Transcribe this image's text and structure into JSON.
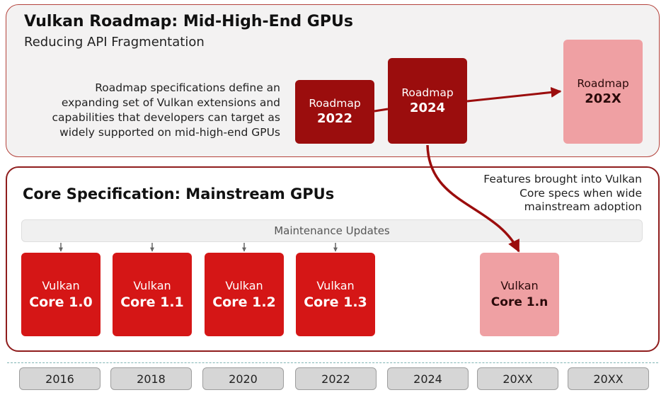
{
  "roadmap_section": {
    "title": "Vulkan Roadmap: Mid-High-End GPUs",
    "subtitle": "Reducing API Fragmentation",
    "description_lines": [
      "Roadmap specifications define an",
      "expanding set of Vulkan extensions and",
      "capabilities that developers can target as",
      "widely supported on mid-high-end GPUs"
    ],
    "milestones": [
      {
        "line1": "Roadmap",
        "line2": "2022"
      },
      {
        "line1": "Roadmap",
        "line2": "2024"
      },
      {
        "line1": "Roadmap",
        "line2": "202X"
      }
    ]
  },
  "core_section": {
    "title": "Core Specification: Mainstream  GPUs",
    "note_lines": [
      "Features brought into Vulkan",
      "Core specs when wide",
      "mainstream adoption"
    ],
    "maintenance_label": "Maintenance Updates",
    "versions": [
      {
        "line1": "Vulkan",
        "line2": "Core 1.0"
      },
      {
        "line1": "Vulkan",
        "line2": "Core 1.1"
      },
      {
        "line1": "Vulkan",
        "line2": "Core 1.2"
      },
      {
        "line1": "Vulkan",
        "line2": "Core 1.3"
      },
      {
        "line1": "Vulkan",
        "line2": "Core 1.n"
      }
    ]
  },
  "timeline": [
    "2016",
    "2018",
    "2020",
    "2022",
    "2024",
    "20XX",
    "20XX"
  ],
  "colors": {
    "roadmap_dark": "#9b0d0d",
    "roadmap_future": "#efa0a3",
    "core_red": "#d51616",
    "border_dark": "#8f1d1d"
  }
}
